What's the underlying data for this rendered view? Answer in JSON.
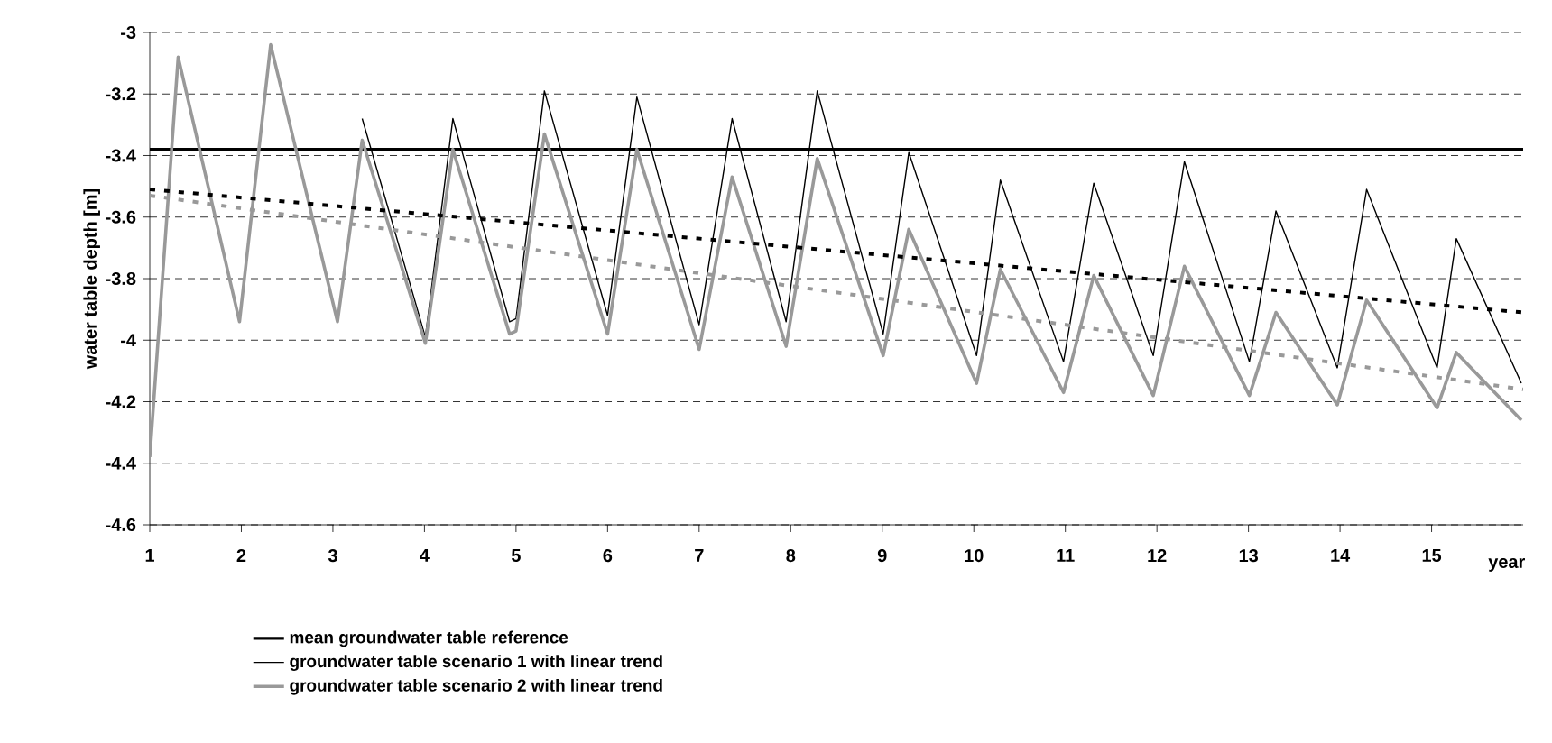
{
  "chart_data": {
    "type": "line",
    "xlabel": "year",
    "ylabel": "water table depth [m]",
    "xlim": [
      1,
      16
    ],
    "xticks": [
      1,
      2,
      3,
      4,
      5,
      6,
      7,
      8,
      9,
      10,
      11,
      12,
      13,
      14,
      15
    ],
    "ylim": [
      -4.6,
      -3
    ],
    "yticks": [
      -4.6,
      -4.4,
      -4.2,
      -4,
      -3.8,
      -3.6,
      -3.4,
      -3.2,
      -3
    ],
    "grid": "y",
    "legend": "bottom",
    "marker": "none",
    "series": [
      {
        "name": "mean groundwater table reference",
        "color": "#000000",
        "x": [
          1,
          16
        ],
        "values": [
          -3.38,
          -3.38
        ]
      },
      {
        "name": "groundwater table scenario 1 with linear trend",
        "color": "#000000",
        "x": [
          3.32,
          4.01,
          4.31,
          4.93,
          5.0,
          5.31,
          6.0,
          6.32,
          7.0,
          7.36,
          7.95,
          8.29,
          9.01,
          9.29,
          10.03,
          10.29,
          10.98,
          11.31,
          11.96,
          12.3,
          13.01,
          13.3,
          13.97,
          14.29,
          15.06,
          15.27,
          15.98
        ],
        "values": [
          -3.28,
          -3.99,
          -3.28,
          -3.94,
          -3.93,
          -3.19,
          -3.92,
          -3.21,
          -3.95,
          -3.28,
          -3.94,
          -3.19,
          -3.98,
          -3.39,
          -4.05,
          -3.48,
          -4.07,
          -3.49,
          -4.05,
          -3.42,
          -4.07,
          -3.58,
          -4.09,
          -3.51,
          -4.09,
          -3.67,
          -4.14
        ]
      },
      {
        "name": "groundwater table scenario 2 with linear trend",
        "color": "#999999",
        "x": [
          1.0,
          1.31,
          1.98,
          2.32,
          3.05,
          3.32,
          4.01,
          4.31,
          4.93,
          5.0,
          5.31,
          6.0,
          6.32,
          7.0,
          7.36,
          7.95,
          8.29,
          9.01,
          9.29,
          10.03,
          10.29,
          10.98,
          11.31,
          11.96,
          12.3,
          13.01,
          13.3,
          13.97,
          14.29,
          15.06,
          15.27,
          15.98
        ],
        "values": [
          -4.38,
          -3.08,
          -3.94,
          -3.04,
          -3.94,
          -3.35,
          -4.01,
          -3.38,
          -3.98,
          -3.97,
          -3.33,
          -3.98,
          -3.38,
          -4.03,
          -3.47,
          -4.02,
          -3.41,
          -4.05,
          -3.64,
          -4.14,
          -3.77,
          -4.17,
          -3.79,
          -4.18,
          -3.76,
          -4.18,
          -3.91,
          -4.21,
          -3.87,
          -4.22,
          -4.04,
          -4.26
        ]
      },
      {
        "color": "#000000",
        "line_style": "dotted",
        "x": [
          1,
          16
        ],
        "values": [
          -3.51,
          -3.91
        ]
      },
      {
        "color": "#999999",
        "line_style": "dotted",
        "x": [
          1,
          16
        ],
        "values": [
          -3.53,
          -4.16
        ]
      }
    ]
  }
}
